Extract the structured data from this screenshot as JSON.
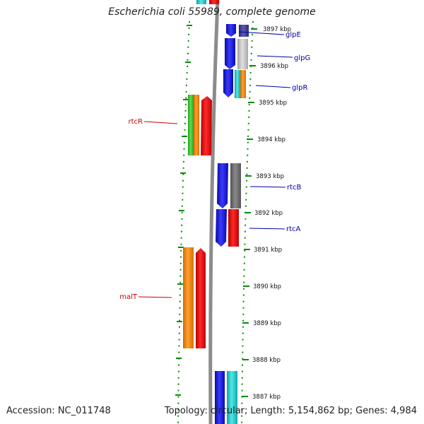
{
  "title": "Escherichia coli 55989, complete genome",
  "footer": {
    "accession": "Accession: NC_011748",
    "summary": "Topology: circular; Length: 5,154,862 bp; Genes: 4,984"
  },
  "axis": {
    "unit": "kbp",
    "ticks": [
      {
        "label": "3897 kbp",
        "kbp": 3897
      },
      {
        "label": "3896 kbp",
        "kbp": 3896
      },
      {
        "label": "3895 kbp",
        "kbp": 3895
      },
      {
        "label": "3894 kbp",
        "kbp": 3894
      },
      {
        "label": "3893 kbp",
        "kbp": 3893
      },
      {
        "label": "3892 kbp",
        "kbp": 3892
      },
      {
        "label": "3891 kbp",
        "kbp": 3891
      },
      {
        "label": "3890 kbp",
        "kbp": 3890
      },
      {
        "label": "3889 kbp",
        "kbp": 3889
      },
      {
        "label": "3888 kbp",
        "kbp": 3888
      },
      {
        "label": "3887 kbp",
        "kbp": 3887
      }
    ]
  },
  "genes_right": [
    {
      "label": "glpE",
      "color": "#0000aa"
    },
    {
      "label": "glpG",
      "color": "#0000aa"
    },
    {
      "label": "glpR",
      "color": "#0000aa"
    },
    {
      "label": "rtcB",
      "color": "#0000aa"
    },
    {
      "label": "rtcA",
      "color": "#0000aa"
    }
  ],
  "genes_left": [
    {
      "label": "rtcR",
      "color": "#cc0000"
    },
    {
      "label": "malT",
      "color": "#cc0000"
    }
  ],
  "colors": {
    "backbone": "#8c8c8c",
    "tick": "#0a8a0a",
    "blue": "#1a1adc",
    "red": "#e01010",
    "orange": "#f08c14",
    "cyan": "#22c8c8",
    "gray": "#777777",
    "lightgray": "#c8c8c8",
    "green": "#3cbe32",
    "navy": "#3c3c96"
  }
}
